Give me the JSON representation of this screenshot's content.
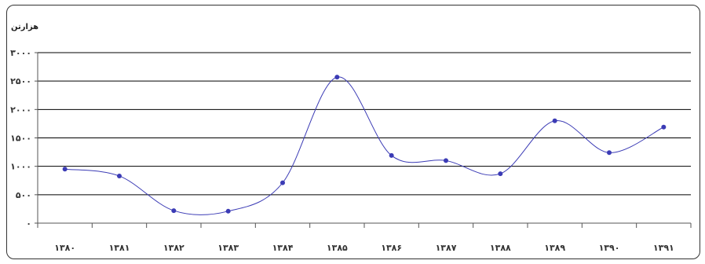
{
  "chart_data": {
    "type": "line",
    "unit_label": "هزارتن",
    "categories": [
      "۱۳۸۰",
      "۱۳۸۱",
      "۱۳۸۲",
      "۱۳۸۳",
      "۱۳۸۴",
      "۱۳۸۵",
      "۱۳۸۶",
      "۱۳۸۷",
      "۱۳۸۸",
      "۱۳۸۹",
      "۱۳۹۰",
      "۱۳۹۱"
    ],
    "series": [
      {
        "values": [
          950,
          830,
          220,
          210,
          710,
          2570,
          1190,
          1100,
          870,
          1800,
          1240,
          1690
        ]
      }
    ],
    "ylim": [
      0,
      3000
    ],
    "y_ticks": [
      0,
      500,
      1000,
      1500,
      2000,
      2500,
      3000
    ],
    "y_tick_labels": [
      "۰",
      "۵۰۰",
      "۱۰۰۰",
      "۱۵۰۰",
      "۲۰۰۰",
      "۲۵۰۰",
      "۳۰۰۰"
    ],
    "grid": true,
    "colors": {
      "line": "#3b3bb5",
      "marker": "#3b3bb5",
      "grid": "#000000"
    }
  }
}
